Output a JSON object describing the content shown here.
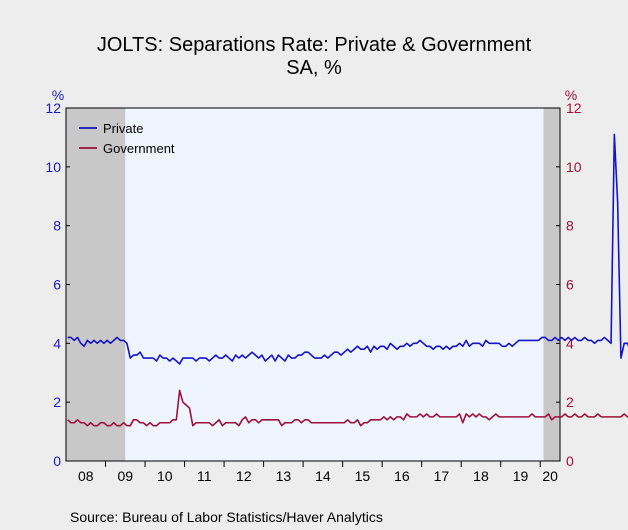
{
  "chart_data": {
    "type": "line",
    "title": "JOLTS: Separations Rate: Private & Government",
    "subtitle": "SA, %",
    "ylabel_left": "%",
    "ylabel_right": "%",
    "ylim": [
      0,
      12
    ],
    "y_ticks": [
      "0",
      "2",
      "4",
      "6",
      "8",
      "10",
      "12"
    ],
    "x_range": [
      "2008-01",
      "2020-06"
    ],
    "x_tick_labels": [
      "08",
      "09",
      "10",
      "11",
      "12",
      "13",
      "14",
      "15",
      "16",
      "17",
      "18",
      "19",
      "20"
    ],
    "grid": false,
    "legend_position": "top-left",
    "recession_bands": [
      {
        "start": "2008-01",
        "end": "2009-06"
      },
      {
        "start": "2020-02",
        "end": "2020-06"
      }
    ],
    "source": "Source:  Bureau of Labor Statistics/Haver Analytics",
    "colors": {
      "private": "#1414c8",
      "government": "#a0113a",
      "plot_bg": "#eef5fe",
      "recession": "#c8c8c8",
      "page_bg": "#ededed"
    },
    "series": [
      {
        "name": "Private",
        "start": "2008-01",
        "values": [
          4.2,
          4.2,
          4.1,
          4.2,
          4.0,
          3.9,
          4.1,
          4.0,
          4.1,
          4.0,
          4.1,
          4.0,
          4.1,
          4.0,
          4.1,
          4.2,
          4.1,
          4.1,
          4.0,
          3.5,
          3.6,
          3.6,
          3.7,
          3.5,
          3.5,
          3.5,
          3.5,
          3.4,
          3.6,
          3.5,
          3.5,
          3.4,
          3.5,
          3.4,
          3.3,
          3.5,
          3.5,
          3.5,
          3.5,
          3.4,
          3.5,
          3.5,
          3.5,
          3.4,
          3.5,
          3.6,
          3.5,
          3.5,
          3.6,
          3.5,
          3.4,
          3.6,
          3.5,
          3.6,
          3.5,
          3.6,
          3.7,
          3.6,
          3.5,
          3.6,
          3.4,
          3.5,
          3.6,
          3.4,
          3.6,
          3.5,
          3.4,
          3.6,
          3.5,
          3.5,
          3.6,
          3.6,
          3.7,
          3.7,
          3.6,
          3.5,
          3.5,
          3.5,
          3.6,
          3.5,
          3.6,
          3.7,
          3.7,
          3.6,
          3.7,
          3.8,
          3.7,
          3.8,
          3.9,
          3.8,
          3.8,
          3.9,
          3.7,
          3.9,
          3.8,
          3.9,
          3.9,
          3.8,
          4.0,
          3.9,
          3.8,
          3.9,
          3.9,
          4.0,
          3.9,
          4.0,
          4.0,
          4.1,
          4.0,
          3.9,
          3.9,
          3.8,
          3.9,
          3.9,
          3.8,
          3.9,
          3.8,
          3.9,
          3.9,
          4.0,
          3.9,
          4.1,
          3.9,
          4.0,
          4.0,
          4.0,
          3.9,
          4.1,
          4.0,
          4.0,
          4.0,
          4.0,
          3.9,
          3.9,
          4.0,
          3.9,
          4.0,
          4.1,
          4.1,
          4.1,
          4.1,
          4.1,
          4.1,
          4.1,
          4.2,
          4.2,
          4.1,
          4.1,
          4.2,
          4.1,
          4.2,
          4.1,
          4.2,
          4.1,
          4.2,
          4.1,
          4.1,
          4.2,
          4.1,
          4.1,
          4.0,
          4.1,
          4.1,
          4.2,
          4.1,
          4.0,
          11.1,
          8.8,
          3.5,
          4.0,
          4.0,
          3.7,
          3.6
        ]
      },
      {
        "name": "Government",
        "start": "2008-01",
        "values": [
          1.4,
          1.3,
          1.3,
          1.4,
          1.3,
          1.3,
          1.2,
          1.3,
          1.2,
          1.2,
          1.3,
          1.3,
          1.2,
          1.2,
          1.3,
          1.2,
          1.2,
          1.3,
          1.2,
          1.2,
          1.4,
          1.4,
          1.3,
          1.3,
          1.2,
          1.3,
          1.2,
          1.2,
          1.3,
          1.3,
          1.3,
          1.3,
          1.4,
          1.4,
          2.4,
          2.0,
          1.9,
          1.8,
          1.2,
          1.3,
          1.3,
          1.3,
          1.3,
          1.3,
          1.2,
          1.3,
          1.4,
          1.2,
          1.3,
          1.3,
          1.3,
          1.3,
          1.2,
          1.4,
          1.5,
          1.3,
          1.4,
          1.4,
          1.3,
          1.4,
          1.4,
          1.4,
          1.4,
          1.4,
          1.4,
          1.2,
          1.3,
          1.3,
          1.3,
          1.4,
          1.4,
          1.3,
          1.4,
          1.4,
          1.3,
          1.3,
          1.3,
          1.3,
          1.3,
          1.3,
          1.3,
          1.3,
          1.3,
          1.3,
          1.3,
          1.4,
          1.3,
          1.3,
          1.4,
          1.2,
          1.3,
          1.3,
          1.4,
          1.4,
          1.4,
          1.4,
          1.5,
          1.4,
          1.5,
          1.4,
          1.5,
          1.5,
          1.4,
          1.6,
          1.5,
          1.5,
          1.5,
          1.6,
          1.5,
          1.6,
          1.5,
          1.5,
          1.6,
          1.5,
          1.5,
          1.5,
          1.5,
          1.5,
          1.5,
          1.6,
          1.3,
          1.6,
          1.5,
          1.6,
          1.5,
          1.6,
          1.5,
          1.5,
          1.4,
          1.5,
          1.6,
          1.5,
          1.5,
          1.5,
          1.5,
          1.5,
          1.5,
          1.5,
          1.5,
          1.5,
          1.5,
          1.6,
          1.5,
          1.5,
          1.5,
          1.5,
          1.6,
          1.4,
          1.5,
          1.5,
          1.5,
          1.6,
          1.5,
          1.5,
          1.6,
          1.5,
          1.5,
          1.6,
          1.5,
          1.5,
          1.5,
          1.6,
          1.5,
          1.5,
          1.5,
          1.5,
          1.5,
          1.5,
          1.5,
          1.6,
          1.5,
          1.5,
          1.5,
          1.5,
          1.5,
          1.5,
          1.8,
          2.0,
          1.4,
          1.1,
          1.2,
          1.3,
          1.5
        ]
      }
    ]
  }
}
